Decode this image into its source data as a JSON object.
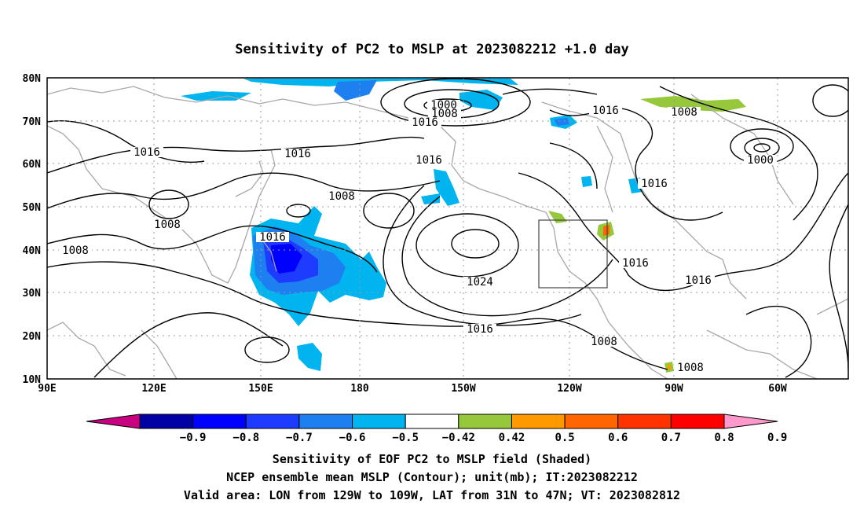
{
  "title": "Sensitivity of PC2 to MSLP at 2023082212 +1.0 day",
  "map": {
    "lat_labels": [
      "80N",
      "70N",
      "60N",
      "50N",
      "40N",
      "30N",
      "20N",
      "10N"
    ],
    "lon_labels": [
      "90E",
      "120E",
      "150E",
      "180",
      "150W",
      "120W",
      "90W",
      "60W"
    ],
    "contour_labels": [
      "1000",
      "1008",
      "1016",
      "1016",
      "1016",
      "1016",
      "1008",
      "1016",
      "1000",
      "1016",
      "1008",
      "1008",
      "1016",
      "1008",
      "1024",
      "1016",
      "1016",
      "1016",
      "1008",
      "1008"
    ],
    "box": "Valid area"
  },
  "colorbar": {
    "labels": [
      "-0.9",
      "-0.8",
      "-0.7",
      "-0.6",
      "-0.5",
      "-0.42",
      "0.42",
      "0.5",
      "0.6",
      "0.7",
      "0.8",
      "0.9"
    ],
    "colors": [
      "#c8007f",
      "#0000a5",
      "#0000ff",
      "#1e3cff",
      "#1e7ff0",
      "#00b4f0",
      "#ffffff",
      "#96c83c",
      "#ff9900",
      "#ff6600",
      "#ff3300",
      "#ff0000",
      "#ff99cc"
    ]
  },
  "footer": {
    "line1": "Sensitivity of EOF PC2 to MSLP field (Shaded)",
    "line2": "NCEP ensemble mean MSLP (Contour); unit(mb); IT:2023082212",
    "line3": "Valid area: LON from 129W to 109W, LAT from 31N to 47N; VT: 2023082812"
  }
}
